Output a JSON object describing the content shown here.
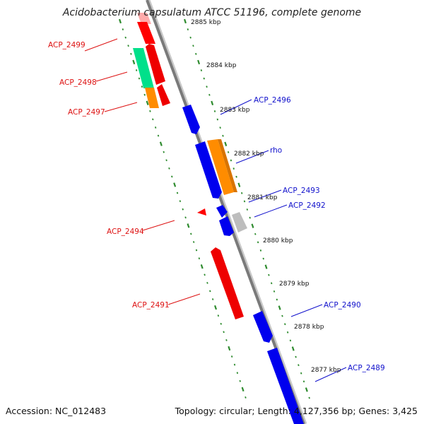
{
  "title": "Acidobacterium capsulatum ATCC 51196, complete genome",
  "footer": {
    "accession": "Accession: NC_012483",
    "summary": "Topology: circular; Length: 4,127,356 bp; Genes: 3,425"
  },
  "colors": {
    "backbone": "#7a7a7a",
    "tick": "#2e8b2e",
    "minus_label": "#dd1111",
    "plus_label": "#1111cc",
    "red": "#ff0000",
    "blue": "#0000ee",
    "orange": "#ff8c00",
    "green": "#00e08a",
    "gray": "#bdbdbd"
  },
  "kbp_ticks": [
    "2885 kbp",
    "2884 kbp",
    "2883 kbp",
    "2882 kbp",
    "2881 kbp",
    "2880 kbp",
    "2879 kbp",
    "2878 kbp",
    "2877 kbp"
  ],
  "minus_strand_labels": [
    "ACP_2499",
    "ACP_2498",
    "ACP_2497",
    "ACP_2494",
    "ACP_2491"
  ],
  "plus_strand_labels": [
    "ACP_2496",
    "rho",
    "ACP_2493",
    "ACP_2492",
    "ACP_2490",
    "ACP_2489"
  ]
}
